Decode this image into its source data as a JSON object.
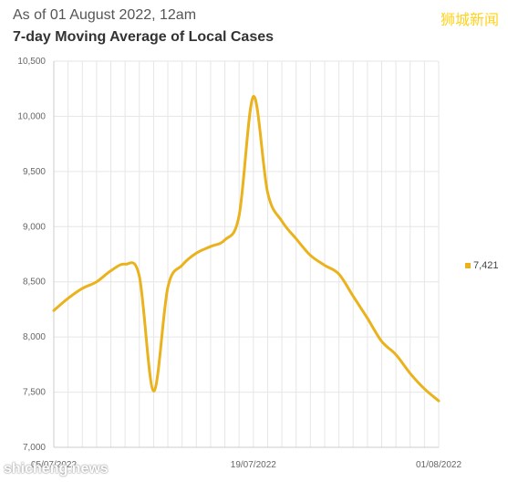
{
  "header": {
    "subtitle": "As of 01 August 2022, 12am",
    "title": "7-day Moving Average of Local Cases"
  },
  "watermarks": {
    "top_right": "狮城新闻",
    "bottom_left": "shicheng.news"
  },
  "legend": {
    "value_label": "7,421"
  },
  "colors": {
    "line": "#eab21c",
    "grid": "#e6e6e6"
  },
  "chart_data": {
    "type": "line",
    "title": "7-day Moving Average of Local Cases",
    "subtitle": "As of 01 August 2022, 12am",
    "x_tick_labels": [
      "05/07/2022",
      "19/07/2022",
      "01/08/2022"
    ],
    "y_tick_labels": [
      "10,500",
      "10,000",
      "9,500",
      "9,000",
      "8,500",
      "8,000",
      "7,500",
      "7,000"
    ],
    "ylim": [
      7000,
      10500
    ],
    "y_ticks": [
      7000,
      7500,
      8000,
      8500,
      9000,
      9500,
      10000,
      10500
    ],
    "grid": true,
    "legend_position": "right",
    "x": [
      "05/07/2022",
      "06/07/2022",
      "07/07/2022",
      "08/07/2022",
      "09/07/2022",
      "10/07/2022",
      "11/07/2022",
      "12/07/2022",
      "13/07/2022",
      "14/07/2022",
      "15/07/2022",
      "16/07/2022",
      "17/07/2022",
      "18/07/2022",
      "19/07/2022",
      "20/07/2022",
      "21/07/2022",
      "22/07/2022",
      "23/07/2022",
      "24/07/2022",
      "25/07/2022",
      "26/07/2022",
      "27/07/2022",
      "28/07/2022",
      "29/07/2022",
      "30/07/2022",
      "31/07/2022",
      "01/08/2022"
    ],
    "series": [
      {
        "name": "7,421",
        "values": [
          8240,
          8350,
          8440,
          8500,
          8600,
          8660,
          8550,
          7510,
          8450,
          8650,
          8760,
          8820,
          8880,
          9100,
          10180,
          9310,
          9050,
          8890,
          8740,
          8650,
          8570,
          8370,
          8170,
          7960,
          7840,
          7670,
          7530,
          7421
        ]
      }
    ]
  }
}
